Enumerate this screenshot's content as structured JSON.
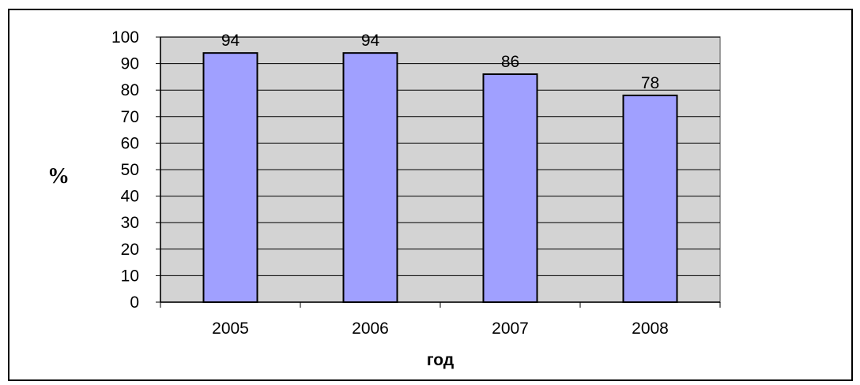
{
  "chart_data": {
    "type": "bar",
    "categories": [
      "2005",
      "2006",
      "2007",
      "2008"
    ],
    "values": [
      94,
      94,
      86,
      78
    ],
    "data_labels": [
      "94",
      "94",
      "86",
      "78"
    ],
    "xlabel": "год",
    "ylabel": "%",
    "ylim": [
      0,
      100
    ],
    "yticks": [
      0,
      10,
      20,
      30,
      40,
      50,
      60,
      70,
      80,
      90,
      100
    ],
    "grid": true,
    "legend": false,
    "colors": {
      "bar_fill": "#a0a0ff",
      "bar_stroke": "#000000",
      "plot_background": "#d3d3d3",
      "gridline": "#000000",
      "plot_border": "#808080"
    }
  }
}
